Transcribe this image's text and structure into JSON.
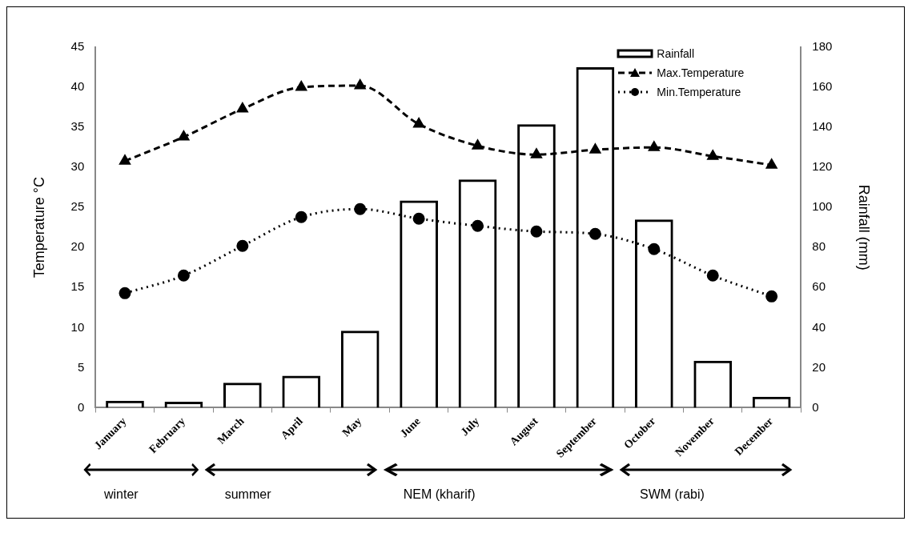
{
  "chart_data": {
    "type": "bar",
    "categories": [
      "January",
      "February",
      "March",
      "April",
      "May",
      "June",
      "July",
      "August",
      "September",
      "October",
      "November",
      "December"
    ],
    "ylabel": "Temperature °C",
    "y2label": "Rainfall (mm)",
    "ylim": [
      0,
      45
    ],
    "yticks": [
      0,
      5,
      10,
      15,
      20,
      25,
      30,
      35,
      40,
      45
    ],
    "y2lim": [
      0,
      180
    ],
    "y2ticks": [
      0,
      20,
      40,
      60,
      80,
      100,
      120,
      140,
      160,
      180
    ],
    "grid": false,
    "legend": "top right",
    "series": [
      {
        "name": "Rainfall",
        "axis": "y2",
        "color": "#000000",
        "values": [
          3.5,
          3,
          12.5,
          16,
          38.5,
          103.5,
          114,
          141.5,
          170,
          94,
          23.5,
          5.5
        ]
      },
      {
        "name": "Max.Temperature",
        "type": "line",
        "color": "#000000",
        "marker": "triangle",
        "line_style": "dashed",
        "values": [
          30.8,
          33.8,
          37.3,
          40.0,
          40.2,
          35.4,
          32.7,
          31.6,
          32.2,
          32.5,
          31.4,
          30.3
        ]
      },
      {
        "name": "Min.Temperature",
        "type": "line",
        "color": "#000000",
        "marker": "circle",
        "line_style": "dotted",
        "values": [
          14.3,
          16.5,
          20.2,
          23.8,
          24.8,
          23.6,
          22.7,
          22.0,
          21.7,
          19.8,
          16.5,
          13.9
        ]
      }
    ],
    "annotations": [
      "winter",
      "summer",
      "NEM (kharif)",
      "SWM (rabi)"
    ]
  }
}
